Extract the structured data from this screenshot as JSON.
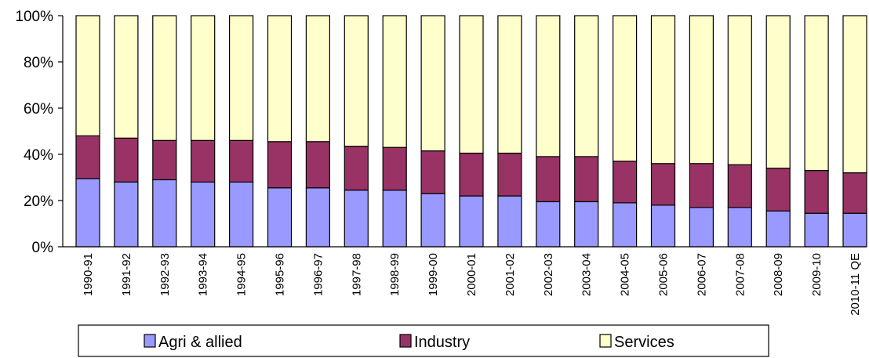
{
  "chart_data": {
    "type": "bar",
    "stacked": true,
    "categories": [
      "1990-91",
      "1991-92",
      "1992-93",
      "1993-94",
      "1994-95",
      "1995-96",
      "1996-97",
      "1997-98",
      "1998-99",
      "1999-00",
      "2000-01",
      "2001-02",
      "2002-03",
      "2003-04",
      "2004-05",
      "2005-06",
      "2006-07",
      "2007-08",
      "2008-09",
      "2009-10",
      "2010-11 QE"
    ],
    "series": [
      {
        "name": "Agri & allied",
        "color": "#9999ff",
        "values": [
          29.5,
          28,
          29,
          28,
          28,
          25.5,
          25.5,
          24.5,
          24.5,
          23,
          22,
          22,
          19.5,
          19.5,
          19,
          18,
          17,
          17,
          15.5,
          14.5,
          14.5
        ]
      },
      {
        "name": "Industry",
        "color": "#993366",
        "values": [
          18.5,
          19,
          17,
          18,
          18,
          20,
          20,
          19,
          18.5,
          18.5,
          18.5,
          18.5,
          19.5,
          19.5,
          18,
          18,
          19,
          18.5,
          18.5,
          18.5,
          17.5
        ]
      },
      {
        "name": "Services",
        "color": "#ffffcc",
        "values": [
          52,
          53,
          54,
          54,
          54,
          54.5,
          54.5,
          56.5,
          57,
          58.5,
          59.5,
          59.5,
          61,
          61,
          63,
          64,
          64,
          64.5,
          66,
          67,
          68
        ]
      }
    ],
    "y_ticks": [
      "0%",
      "20%",
      "40%",
      "60%",
      "80%",
      "100%"
    ],
    "ylim": [
      0,
      100
    ],
    "title": "",
    "xlabel": "",
    "ylabel": "",
    "grid": false,
    "legend_position": "bottom"
  }
}
